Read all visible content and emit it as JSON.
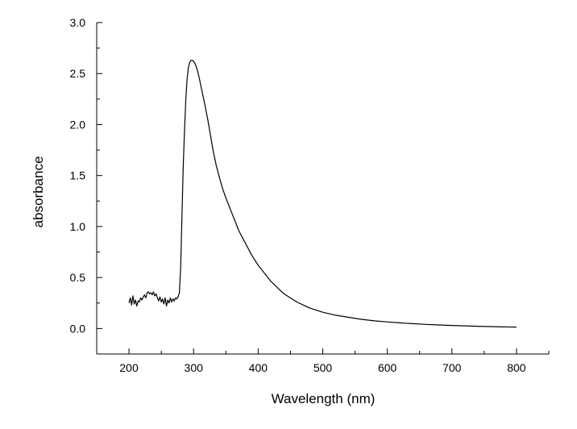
{
  "chart_data": {
    "type": "line",
    "title": "",
    "xlabel": "Wavelength (nm)",
    "ylabel": "absorbance",
    "xlim": [
      150,
      850
    ],
    "ylim": [
      -0.25,
      3.0
    ],
    "xticks": [
      200,
      300,
      400,
      500,
      600,
      700,
      800
    ],
    "xtick_labels": [
      "200",
      "300",
      "400",
      "500",
      "600",
      "700",
      "800"
    ],
    "yticks": [
      0.0,
      0.5,
      1.0,
      1.5,
      2.0,
      2.5,
      3.0
    ],
    "ytick_labels": [
      "0.0",
      "0.5",
      "1.0",
      "1.5",
      "2.0",
      "2.5",
      "3.0"
    ],
    "grid": false,
    "legend": "none",
    "line_color": "#000000",
    "series": [
      {
        "values_x": [
          200,
          202,
          204,
          206,
          208,
          210,
          212,
          214,
          216,
          218,
          220,
          222,
          224,
          226,
          228,
          230,
          232,
          234,
          236,
          238,
          240,
          242,
          244,
          246,
          248,
          250,
          252,
          254,
          256,
          258,
          260,
          262,
          264,
          266,
          268,
          270,
          272,
          274,
          276,
          278,
          280,
          282,
          284,
          286,
          288,
          290,
          292,
          294,
          296,
          298,
          300,
          302,
          304,
          306,
          308,
          310,
          314,
          318,
          322,
          326,
          330,
          335,
          340,
          345,
          350,
          355,
          360,
          365,
          370,
          380,
          390,
          400,
          420,
          440,
          460,
          480,
          500,
          520,
          540,
          560,
          580,
          600,
          620,
          640,
          660,
          680,
          700,
          720,
          740,
          760,
          780,
          800
        ],
        "values_y": [
          0.25,
          0.3,
          0.23,
          0.32,
          0.24,
          0.28,
          0.22,
          0.27,
          0.26,
          0.3,
          0.28,
          0.31,
          0.33,
          0.3,
          0.35,
          0.36,
          0.34,
          0.35,
          0.33,
          0.36,
          0.32,
          0.34,
          0.3,
          0.27,
          0.31,
          0.26,
          0.29,
          0.24,
          0.3,
          0.22,
          0.28,
          0.25,
          0.3,
          0.26,
          0.29,
          0.27,
          0.3,
          0.29,
          0.31,
          0.35,
          0.6,
          1.1,
          1.6,
          1.95,
          2.25,
          2.45,
          2.56,
          2.61,
          2.63,
          2.63,
          2.62,
          2.6,
          2.57,
          2.53,
          2.48,
          2.42,
          2.3,
          2.18,
          2.05,
          1.9,
          1.75,
          1.6,
          1.48,
          1.37,
          1.28,
          1.2,
          1.12,
          1.04,
          0.96,
          0.84,
          0.72,
          0.62,
          0.46,
          0.34,
          0.26,
          0.2,
          0.16,
          0.13,
          0.11,
          0.09,
          0.075,
          0.065,
          0.055,
          0.047,
          0.04,
          0.035,
          0.03,
          0.026,
          0.022,
          0.019,
          0.016,
          0.014
        ]
      }
    ]
  }
}
